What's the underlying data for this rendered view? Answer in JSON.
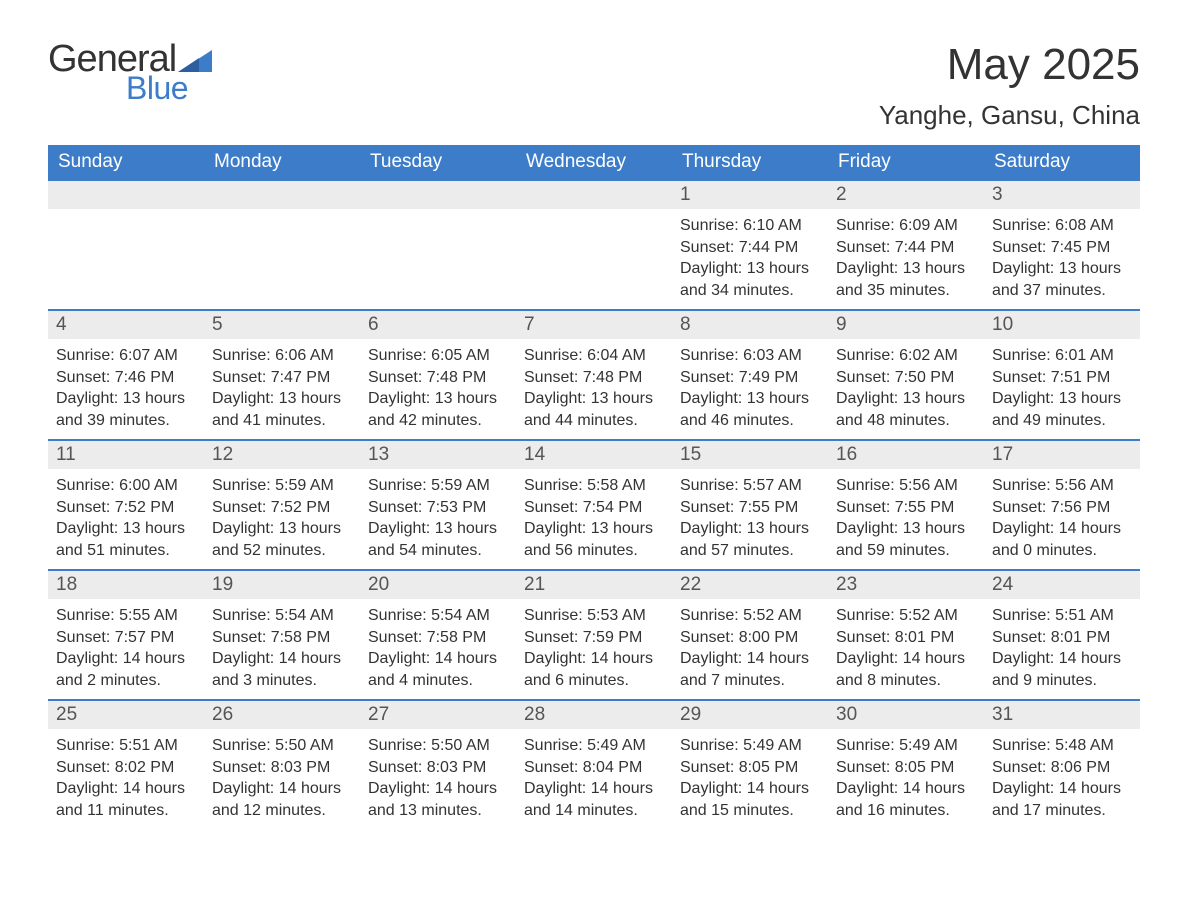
{
  "brand": {
    "line1": "General",
    "line2": "Blue",
    "accent_color": "#3d7cc9"
  },
  "title": "May 2025",
  "location": "Yanghe, Gansu, China",
  "colors": {
    "header_bg": "#3d7cc9",
    "header_text": "#ffffff",
    "daynum_bg": "#ececec",
    "daynum_border": "#3d7cc9",
    "body_text": "#333333",
    "background": "#ffffff"
  },
  "day_labels": [
    "Sunday",
    "Monday",
    "Tuesday",
    "Wednesday",
    "Thursday",
    "Friday",
    "Saturday"
  ],
  "weeks": [
    [
      {
        "day": null
      },
      {
        "day": null
      },
      {
        "day": null
      },
      {
        "day": null
      },
      {
        "day": 1,
        "sunrise": "6:10 AM",
        "sunset": "7:44 PM",
        "daylight1": "13 hours",
        "daylight2": "and 34 minutes."
      },
      {
        "day": 2,
        "sunrise": "6:09 AM",
        "sunset": "7:44 PM",
        "daylight1": "13 hours",
        "daylight2": "and 35 minutes."
      },
      {
        "day": 3,
        "sunrise": "6:08 AM",
        "sunset": "7:45 PM",
        "daylight1": "13 hours",
        "daylight2": "and 37 minutes."
      }
    ],
    [
      {
        "day": 4,
        "sunrise": "6:07 AM",
        "sunset": "7:46 PM",
        "daylight1": "13 hours",
        "daylight2": "and 39 minutes."
      },
      {
        "day": 5,
        "sunrise": "6:06 AM",
        "sunset": "7:47 PM",
        "daylight1": "13 hours",
        "daylight2": "and 41 minutes."
      },
      {
        "day": 6,
        "sunrise": "6:05 AM",
        "sunset": "7:48 PM",
        "daylight1": "13 hours",
        "daylight2": "and 42 minutes."
      },
      {
        "day": 7,
        "sunrise": "6:04 AM",
        "sunset": "7:48 PM",
        "daylight1": "13 hours",
        "daylight2": "and 44 minutes."
      },
      {
        "day": 8,
        "sunrise": "6:03 AM",
        "sunset": "7:49 PM",
        "daylight1": "13 hours",
        "daylight2": "and 46 minutes."
      },
      {
        "day": 9,
        "sunrise": "6:02 AM",
        "sunset": "7:50 PM",
        "daylight1": "13 hours",
        "daylight2": "and 48 minutes."
      },
      {
        "day": 10,
        "sunrise": "6:01 AM",
        "sunset": "7:51 PM",
        "daylight1": "13 hours",
        "daylight2": "and 49 minutes."
      }
    ],
    [
      {
        "day": 11,
        "sunrise": "6:00 AM",
        "sunset": "7:52 PM",
        "daylight1": "13 hours",
        "daylight2": "and 51 minutes."
      },
      {
        "day": 12,
        "sunrise": "5:59 AM",
        "sunset": "7:52 PM",
        "daylight1": "13 hours",
        "daylight2": "and 52 minutes."
      },
      {
        "day": 13,
        "sunrise": "5:59 AM",
        "sunset": "7:53 PM",
        "daylight1": "13 hours",
        "daylight2": "and 54 minutes."
      },
      {
        "day": 14,
        "sunrise": "5:58 AM",
        "sunset": "7:54 PM",
        "daylight1": "13 hours",
        "daylight2": "and 56 minutes."
      },
      {
        "day": 15,
        "sunrise": "5:57 AM",
        "sunset": "7:55 PM",
        "daylight1": "13 hours",
        "daylight2": "and 57 minutes."
      },
      {
        "day": 16,
        "sunrise": "5:56 AM",
        "sunset": "7:55 PM",
        "daylight1": "13 hours",
        "daylight2": "and 59 minutes."
      },
      {
        "day": 17,
        "sunrise": "5:56 AM",
        "sunset": "7:56 PM",
        "daylight1": "14 hours",
        "daylight2": "and 0 minutes."
      }
    ],
    [
      {
        "day": 18,
        "sunrise": "5:55 AM",
        "sunset": "7:57 PM",
        "daylight1": "14 hours",
        "daylight2": "and 2 minutes."
      },
      {
        "day": 19,
        "sunrise": "5:54 AM",
        "sunset": "7:58 PM",
        "daylight1": "14 hours",
        "daylight2": "and 3 minutes."
      },
      {
        "day": 20,
        "sunrise": "5:54 AM",
        "sunset": "7:58 PM",
        "daylight1": "14 hours",
        "daylight2": "and 4 minutes."
      },
      {
        "day": 21,
        "sunrise": "5:53 AM",
        "sunset": "7:59 PM",
        "daylight1": "14 hours",
        "daylight2": "and 6 minutes."
      },
      {
        "day": 22,
        "sunrise": "5:52 AM",
        "sunset": "8:00 PM",
        "daylight1": "14 hours",
        "daylight2": "and 7 minutes."
      },
      {
        "day": 23,
        "sunrise": "5:52 AM",
        "sunset": "8:01 PM",
        "daylight1": "14 hours",
        "daylight2": "and 8 minutes."
      },
      {
        "day": 24,
        "sunrise": "5:51 AM",
        "sunset": "8:01 PM",
        "daylight1": "14 hours",
        "daylight2": "and 9 minutes."
      }
    ],
    [
      {
        "day": 25,
        "sunrise": "5:51 AM",
        "sunset": "8:02 PM",
        "daylight1": "14 hours",
        "daylight2": "and 11 minutes."
      },
      {
        "day": 26,
        "sunrise": "5:50 AM",
        "sunset": "8:03 PM",
        "daylight1": "14 hours",
        "daylight2": "and 12 minutes."
      },
      {
        "day": 27,
        "sunrise": "5:50 AM",
        "sunset": "8:03 PM",
        "daylight1": "14 hours",
        "daylight2": "and 13 minutes."
      },
      {
        "day": 28,
        "sunrise": "5:49 AM",
        "sunset": "8:04 PM",
        "daylight1": "14 hours",
        "daylight2": "and 14 minutes."
      },
      {
        "day": 29,
        "sunrise": "5:49 AM",
        "sunset": "8:05 PM",
        "daylight1": "14 hours",
        "daylight2": "and 15 minutes."
      },
      {
        "day": 30,
        "sunrise": "5:49 AM",
        "sunset": "8:05 PM",
        "daylight1": "14 hours",
        "daylight2": "and 16 minutes."
      },
      {
        "day": 31,
        "sunrise": "5:48 AM",
        "sunset": "8:06 PM",
        "daylight1": "14 hours",
        "daylight2": "and 17 minutes."
      }
    ]
  ],
  "labels_prefix": {
    "sunrise": "Sunrise: ",
    "sunset": "Sunset: ",
    "daylight": "Daylight: "
  }
}
